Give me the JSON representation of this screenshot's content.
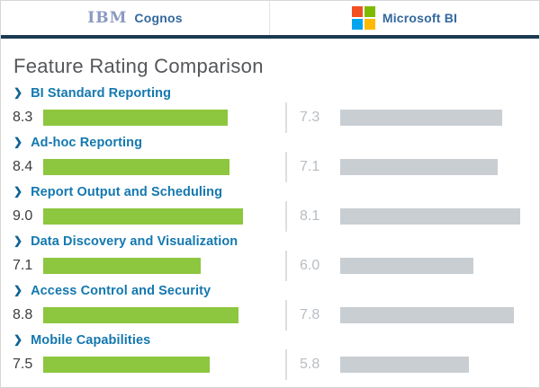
{
  "header": {
    "left_brand": {
      "logo": "ibm-logo",
      "label": "Cognos"
    },
    "right_brand": {
      "logo": "microsoft-logo",
      "label": "Microsoft BI"
    }
  },
  "title": "Feature Rating Comparison",
  "colors": {
    "cognos_bar": "#8dc63f",
    "microsoft_bar": "#c9ced3",
    "feature_label_blue": "#1478b0",
    "chevron_blue": "#0e6394",
    "left_value_text": "#3c3c3e",
    "right_value_text": "#b7bdc3",
    "header_rule_navy": "#1b3a52",
    "ms_logo_red": "#f25022",
    "ms_logo_green": "#7fba00",
    "ms_logo_blue": "#00a4ef",
    "ms_logo_yellow": "#ffb900"
  },
  "chart_data": {
    "type": "bar",
    "title": "Feature Rating Comparison",
    "categories": [
      "BI Standard Reporting",
      "Ad-hoc Reporting",
      "Report Output and Scheduling",
      "Data Discovery and Visualization",
      "Access Control and Security",
      "Mobile Capabilities"
    ],
    "series": [
      {
        "name": "IBM Cognos",
        "values": [
          8.3,
          8.4,
          9.0,
          7.1,
          8.8,
          7.5
        ]
      },
      {
        "name": "Microsoft BI",
        "values": [
          7.3,
          7.1,
          8.1,
          6.0,
          7.8,
          5.8
        ]
      }
    ],
    "value_range": [
      0,
      10
    ],
    "orientation": "horizontal",
    "grid": false,
    "legend_position": "top-header"
  }
}
